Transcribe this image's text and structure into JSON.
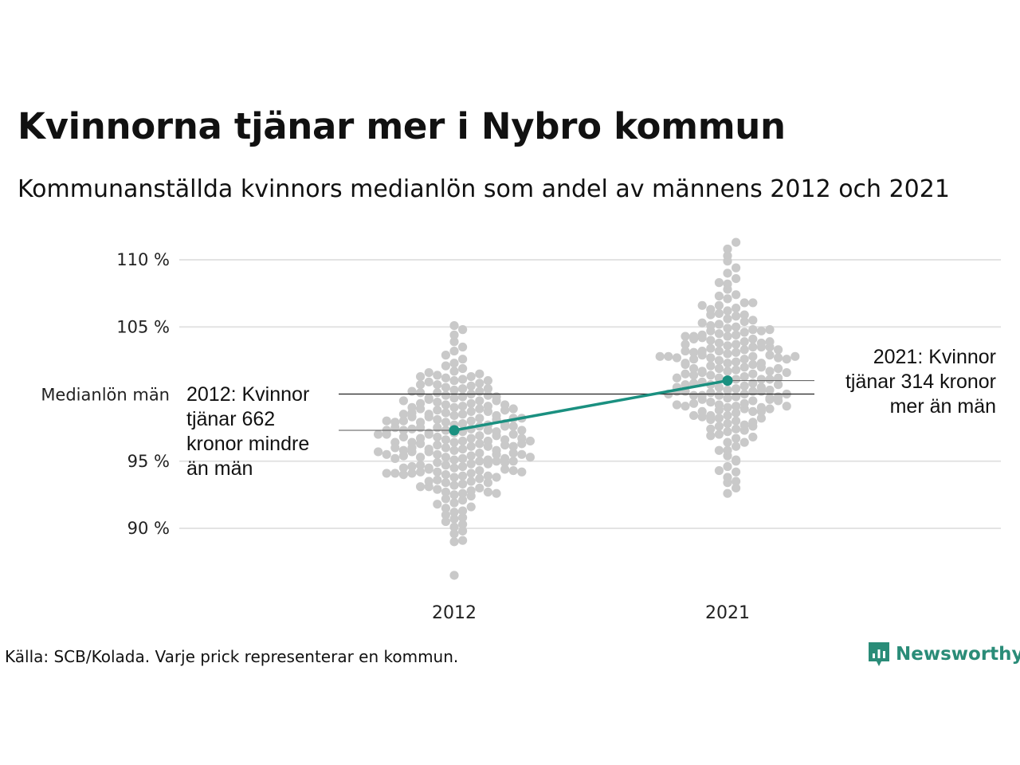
{
  "header": {
    "title": "Kvinnorna tjänar mer i Nybro kommun",
    "subtitle": "Kommunanställda kvinnors medianlön som andel av männens 2012 och 2021"
  },
  "footer": {
    "source": "Källa: SCB/Kolada. Varje prick representerar en kommun.",
    "brand": "Newsworthy"
  },
  "colors": {
    "highlight": "#1a9080",
    "dots": "#c9c9c9",
    "grid": "#e3e3e3",
    "reference_line": "#222222",
    "brand": "#2a8c78"
  },
  "chart_data": {
    "type": "scatter",
    "subtype": "beeswarm",
    "categories": [
      "2012",
      "2021"
    ],
    "y_unit": "%",
    "ylim": [
      86,
      112
    ],
    "y_ticks": [
      {
        "value": 90,
        "label": "90 %"
      },
      {
        "value": 95,
        "label": "95 %"
      },
      {
        "value": 105,
        "label": "105 %"
      },
      {
        "value": 110,
        "label": "110 %"
      }
    ],
    "grid": true,
    "reference_line": {
      "value": 100,
      "label": "Medianlön män"
    },
    "highlight": {
      "values": [
        97.3,
        101.0
      ],
      "annotations": [
        {
          "category": "2012",
          "lines": [
            "2012: Kvinnor",
            "tjänar 662",
            "kronor mindre",
            "än män"
          ]
        },
        {
          "category": "2021",
          "lines": [
            "2021: Kvinnor",
            "tjänar 314 kronor",
            "mer än män"
          ]
        }
      ]
    },
    "distributions": [
      {
        "category": "2012",
        "values": [
          86.5,
          89,
          89.1,
          89.6,
          89.8,
          90.1,
          90.3,
          90.5,
          90.7,
          90.8,
          91,
          91.2,
          91.3,
          91.5,
          91.6,
          91.8,
          91.9,
          92.1,
          92.2,
          92.4,
          92.5,
          92.6,
          92.7,
          92.8,
          92.9,
          93,
          93.1,
          93.2,
          93.3,
          93.4,
          93.5,
          93.6,
          93.7,
          93.8,
          93.9,
          94,
          94.1,
          94.2,
          94.3,
          94.4,
          94.5,
          94.6,
          94.7,
          94.8,
          94.9,
          95,
          95.1,
          95.2,
          95.3,
          95.4,
          95.5,
          95.6,
          95.7,
          95.8,
          95.9,
          96,
          96.1,
          96.2,
          96.3,
          96.4,
          96.5,
          96.6,
          96.7,
          96.8,
          96.9,
          97,
          97.1,
          97.2,
          97.3,
          97.4,
          97.5,
          97.6,
          97.7,
          97.8,
          97.9,
          98,
          98.1,
          98.2,
          98.3,
          98.4,
          98.5,
          98.6,
          98.7,
          98.8,
          98.9,
          99,
          99.1,
          99.2,
          99.3,
          99.4,
          99.5,
          99.6,
          99.7,
          99.8,
          99.9,
          100,
          100.1,
          100.2,
          100.3,
          100.4,
          100.5,
          100.6,
          100.7,
          100.8,
          100.9,
          101,
          101.1,
          101.2,
          101.3,
          101.4,
          101.5,
          101.6,
          101.7,
          101.9,
          102.1,
          102.3,
          102.6,
          102.9,
          103.2,
          103.5,
          103.9,
          104.4,
          104.8,
          105.1,
          92.7,
          93.1,
          93.5,
          93.9,
          94.2,
          94.5,
          94.8,
          95.1,
          95.3,
          95.5,
          95.7,
          95.9,
          96.1,
          96.3,
          96.5,
          96.7,
          96.9,
          97.1,
          97.3,
          97.5,
          97.7,
          97.9,
          98.1,
          98.3,
          98.5,
          98.7,
          98.9,
          99.1,
          99.3,
          99.5,
          99.7,
          99.9,
          100.1,
          100.4,
          100.7,
          101,
          101.3,
          93.4,
          93.8,
          94.1,
          94.4,
          94.7,
          95,
          95.2,
          95.4,
          95.6,
          95.8,
          96,
          96.2,
          96.4,
          96.6,
          96.8,
          97,
          97.2,
          97.4,
          97.6,
          97.8,
          98,
          98.2,
          98.4,
          98.6,
          98.8,
          99,
          99.2,
          99.5,
          99.8,
          100.2,
          94,
          94.3,
          94.6,
          94.9,
          95.2,
          95.5,
          95.8,
          96.1,
          96.4,
          96.7,
          97,
          97.3,
          97.6,
          97.9,
          98.2,
          98.5,
          98.9,
          94.1,
          94.5,
          95,
          95.5,
          96,
          96.5,
          97,
          97.5,
          98,
          94.2,
          95.3,
          96.3,
          97.3,
          92.6,
          94.1,
          95.7,
          97.3
        ]
      },
      {
        "category": "2021",
        "values": [
          92.6,
          93,
          93.4,
          93.8,
          94.2,
          94.6,
          95,
          95.4,
          95.8,
          96.1,
          96.4,
          96.7,
          97,
          97.2,
          97.4,
          97.6,
          97.8,
          98,
          98.2,
          98.4,
          98.6,
          98.8,
          98.9,
          99,
          99.1,
          99.2,
          99.3,
          99.4,
          99.5,
          99.6,
          99.7,
          99.8,
          99.9,
          100,
          100.1,
          100.2,
          100.3,
          100.4,
          100.5,
          100.6,
          100.7,
          100.8,
          100.9,
          101,
          101.1,
          101.2,
          101.3,
          101.4,
          101.5,
          101.6,
          101.7,
          101.8,
          101.9,
          102,
          102.1,
          102.2,
          102.3,
          102.4,
          102.5,
          102.6,
          102.7,
          102.8,
          102.9,
          103,
          103.1,
          103.2,
          103.3,
          103.4,
          103.5,
          103.6,
          103.7,
          103.8,
          103.9,
          104,
          104.1,
          104.2,
          104.3,
          104.4,
          104.5,
          104.6,
          104.7,
          104.8,
          104.9,
          105,
          105.2,
          105.4,
          105.6,
          105.8,
          106,
          106.2,
          106.4,
          106.6,
          106.8,
          107.1,
          107.4,
          107.8,
          108.2,
          108.6,
          109,
          109.4,
          109.9,
          110.3,
          110.8,
          111.3,
          93.5,
          94.3,
          95.1,
          95.8,
          96.4,
          96.9,
          97.3,
          97.7,
          98.1,
          98.4,
          98.7,
          99,
          99.3,
          99.6,
          99.9,
          100.2,
          100.5,
          100.8,
          101.1,
          101.4,
          101.7,
          102,
          102.3,
          102.6,
          102.9,
          103.2,
          103.5,
          103.8,
          104.1,
          104.4,
          104.7,
          105.1,
          105.5,
          105.9,
          106.3,
          106.8,
          107.3,
          108.3,
          96.8,
          97.4,
          97.9,
          98.3,
          98.7,
          99.1,
          99.5,
          99.9,
          100.3,
          100.7,
          101.1,
          101.5,
          101.9,
          102.3,
          102.7,
          103.1,
          103.5,
          103.9,
          104.3,
          104.8,
          105.3,
          105.9,
          106.6,
          97.6,
          98.2,
          98.7,
          99.2,
          99.7,
          100.2,
          100.7,
          101.2,
          101.7,
          102.2,
          102.7,
          103.2,
          103.7,
          104.3,
          98.4,
          99.1,
          99.8,
          100.5,
          101.2,
          101.9,
          102.6,
          103.3,
          98.9,
          100.2,
          101.6,
          102.8,
          100,
          102.8,
          100,
          102.8
        ]
      }
    ]
  }
}
